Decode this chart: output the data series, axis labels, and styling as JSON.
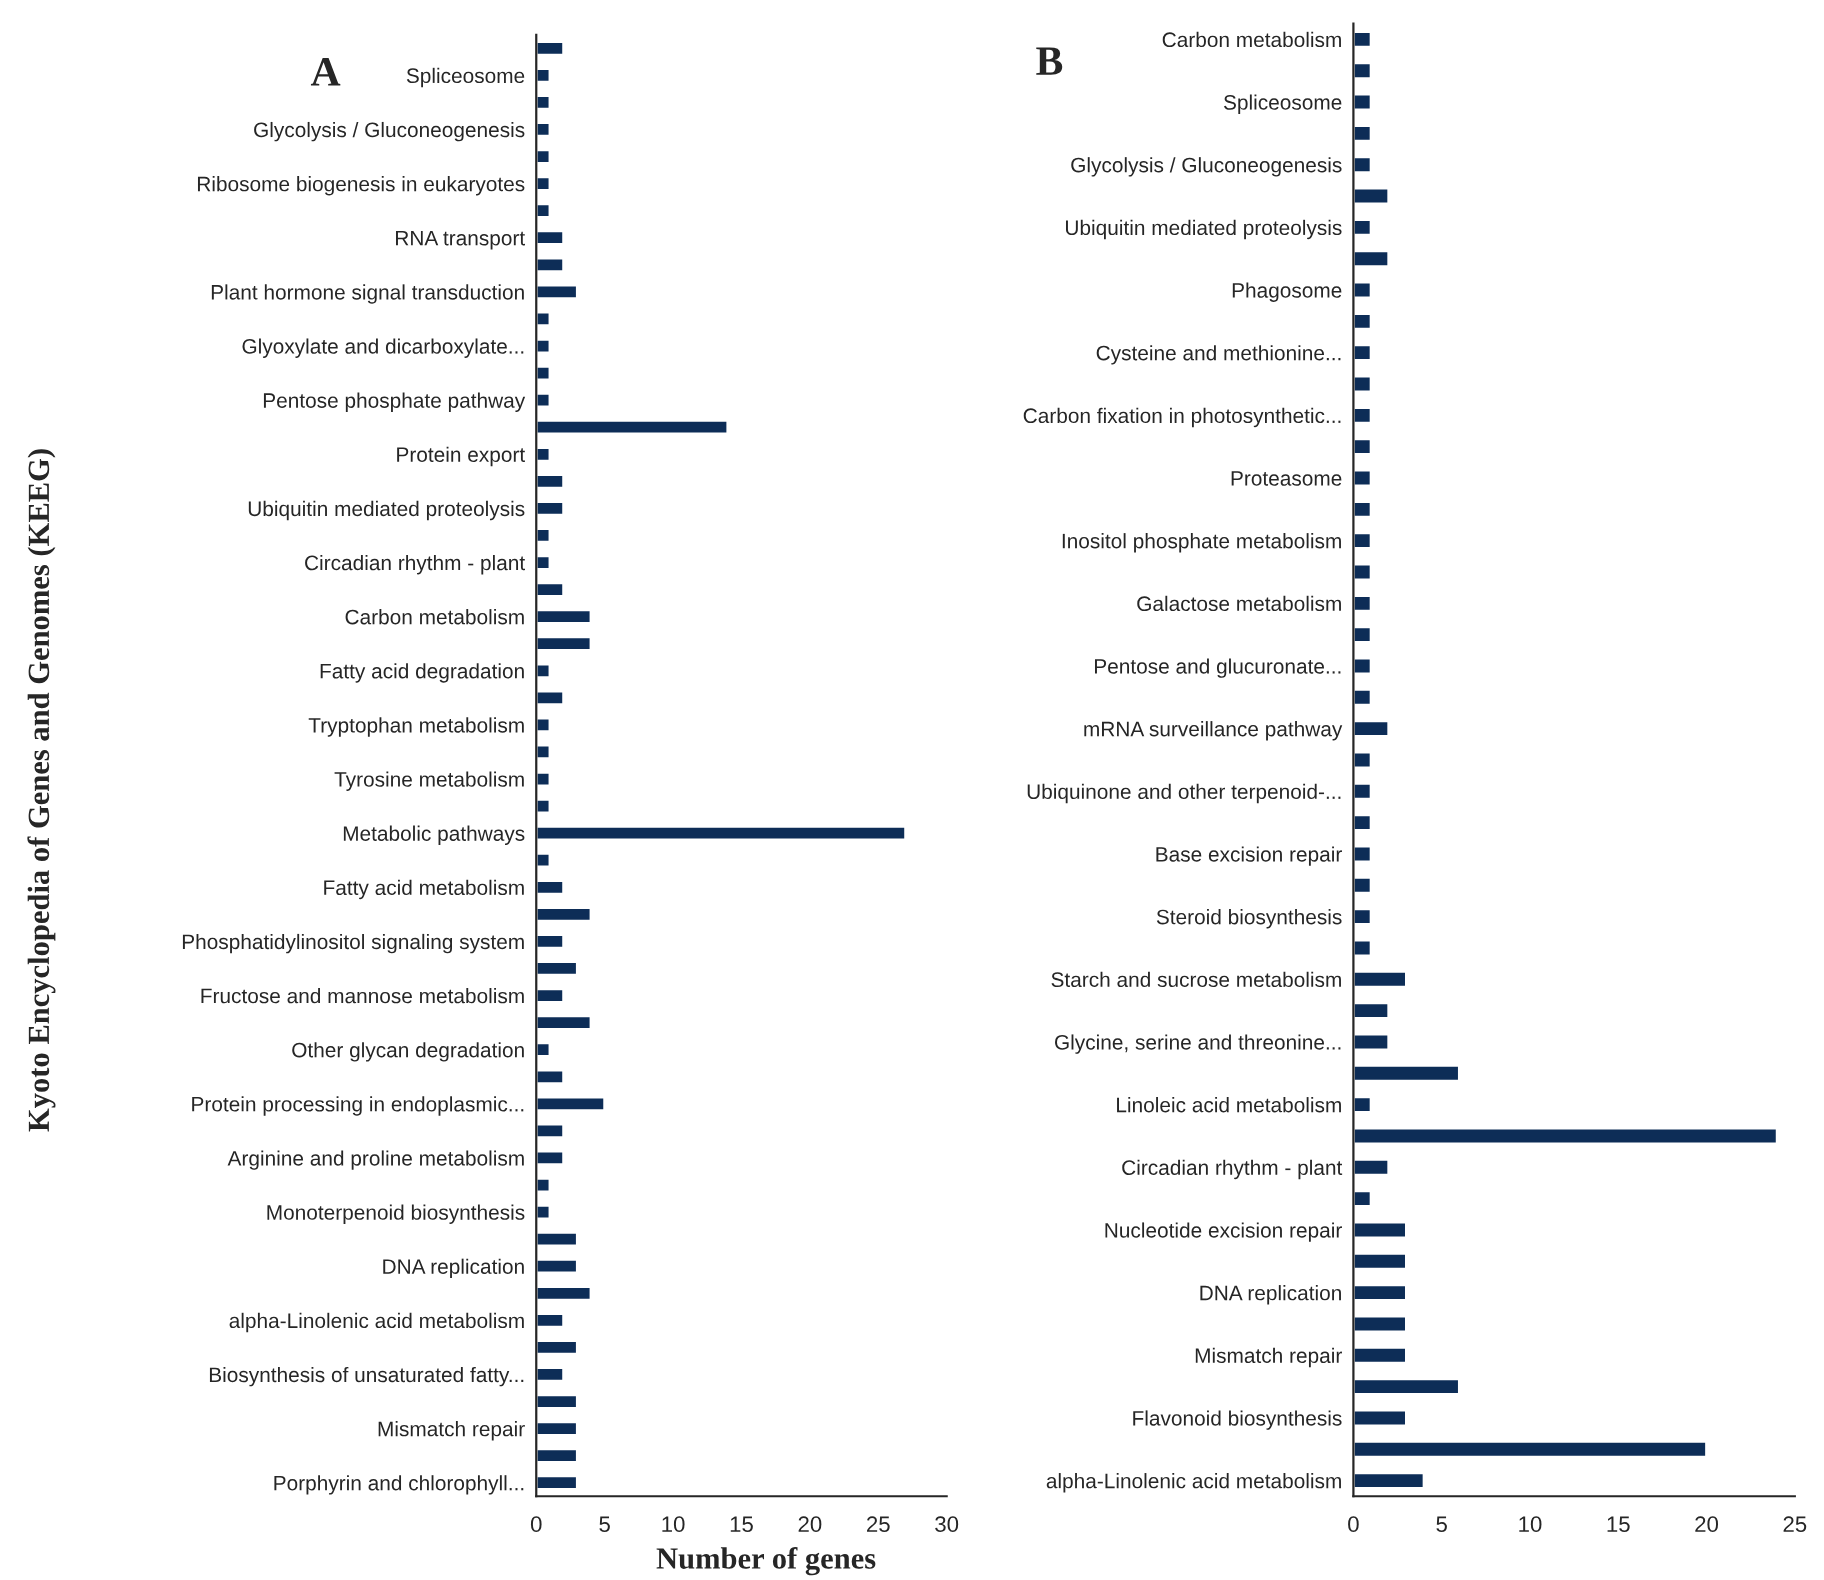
{
  "chart_data": [
    {
      "type": "bar",
      "orientation": "horizontal",
      "title": "A",
      "ylabel": "Kyoto Encyclopedia of Genes and Genomes (KEEG)",
      "xlabel": "Number of genes",
      "color": "#0d2d57",
      "xlim": [
        0,
        30
      ],
      "xticks": [
        0,
        5,
        10,
        15,
        20,
        25,
        30
      ],
      "categories": [
        null,
        "Spliceosome",
        null,
        "Glycolysis / Gluconeogenesis",
        null,
        "Ribosome biogenesis in eukaryotes",
        null,
        "RNA transport",
        null,
        "Plant hormone signal transduction",
        null,
        "Glyoxylate and dicarboxylate...",
        null,
        "Pentose phosphate pathway",
        null,
        "Protein export",
        null,
        "Ubiquitin mediated proteolysis",
        null,
        "Circadian rhythm - plant",
        null,
        "Carbon metabolism",
        null,
        "Fatty acid degradation",
        null,
        "Tryptophan metabolism",
        null,
        "Tyrosine metabolism",
        null,
        "Metabolic pathways",
        null,
        "Fatty acid metabolism",
        null,
        "Phosphatidylinositol signaling system",
        null,
        "Fructose and mannose metabolism",
        null,
        "Other glycan degradation",
        null,
        "Protein processing in endoplasmic...",
        null,
        "Arginine and proline metabolism",
        null,
        "Monoterpenoid biosynthesis",
        null,
        "DNA replication",
        null,
        "alpha-Linolenic acid metabolism",
        null,
        "Biosynthesis of unsaturated fatty...",
        null,
        "Mismatch repair",
        null,
        "Porphyrin and chlorophyll..."
      ],
      "values": [
        2,
        1,
        1,
        1,
        1,
        1,
        1,
        2,
        2,
        3,
        1,
        1,
        1,
        1,
        14,
        1,
        2,
        2,
        1,
        1,
        2,
        4,
        4,
        1,
        2,
        1,
        1,
        1,
        1,
        27,
        1,
        2,
        4,
        2,
        3,
        2,
        4,
        1,
        2,
        5,
        2,
        2,
        1,
        1,
        3,
        3,
        4,
        2,
        3,
        2,
        3,
        3,
        3,
        3
      ]
    },
    {
      "type": "bar",
      "orientation": "horizontal",
      "title": "B",
      "color": "#0d2d57",
      "xlim": [
        0,
        25
      ],
      "xticks": [
        0,
        5,
        10,
        15,
        20,
        25
      ],
      "categories": [
        "Carbon metabolism",
        null,
        "Spliceosome",
        null,
        "Glycolysis / Gluconeogenesis",
        null,
        "Ubiquitin mediated proteolysis",
        null,
        "Phagosome",
        null,
        "Cysteine and methionine...",
        null,
        "Carbon fixation in photosynthetic...",
        null,
        "Proteasome",
        null,
        "Inositol phosphate metabolism",
        null,
        "Galactose metabolism",
        null,
        "Pentose and glucuronate...",
        null,
        "mRNA surveillance pathway",
        null,
        "Ubiquinone and other terpenoid-...",
        null,
        "Base excision repair",
        null,
        "Steroid biosynthesis",
        null,
        "Starch and sucrose metabolism",
        null,
        "Glycine, serine and threonine...",
        null,
        "Linoleic acid metabolism",
        null,
        "Circadian rhythm - plant",
        null,
        "Nucleotide excision repair",
        null,
        "DNA replication",
        null,
        "Mismatch repair",
        null,
        "Flavonoid biosynthesis",
        null,
        "alpha-Linolenic acid metabolism"
      ],
      "values": [
        1,
        1,
        1,
        1,
        1,
        2,
        1,
        2,
        1,
        1,
        1,
        1,
        1,
        1,
        1,
        1,
        1,
        1,
        1,
        1,
        1,
        1,
        2,
        1,
        1,
        1,
        1,
        1,
        1,
        1,
        3,
        2,
        2,
        6,
        1,
        24,
        2,
        1,
        3,
        3,
        3,
        3,
        3,
        6,
        3,
        20,
        4
      ]
    }
  ]
}
